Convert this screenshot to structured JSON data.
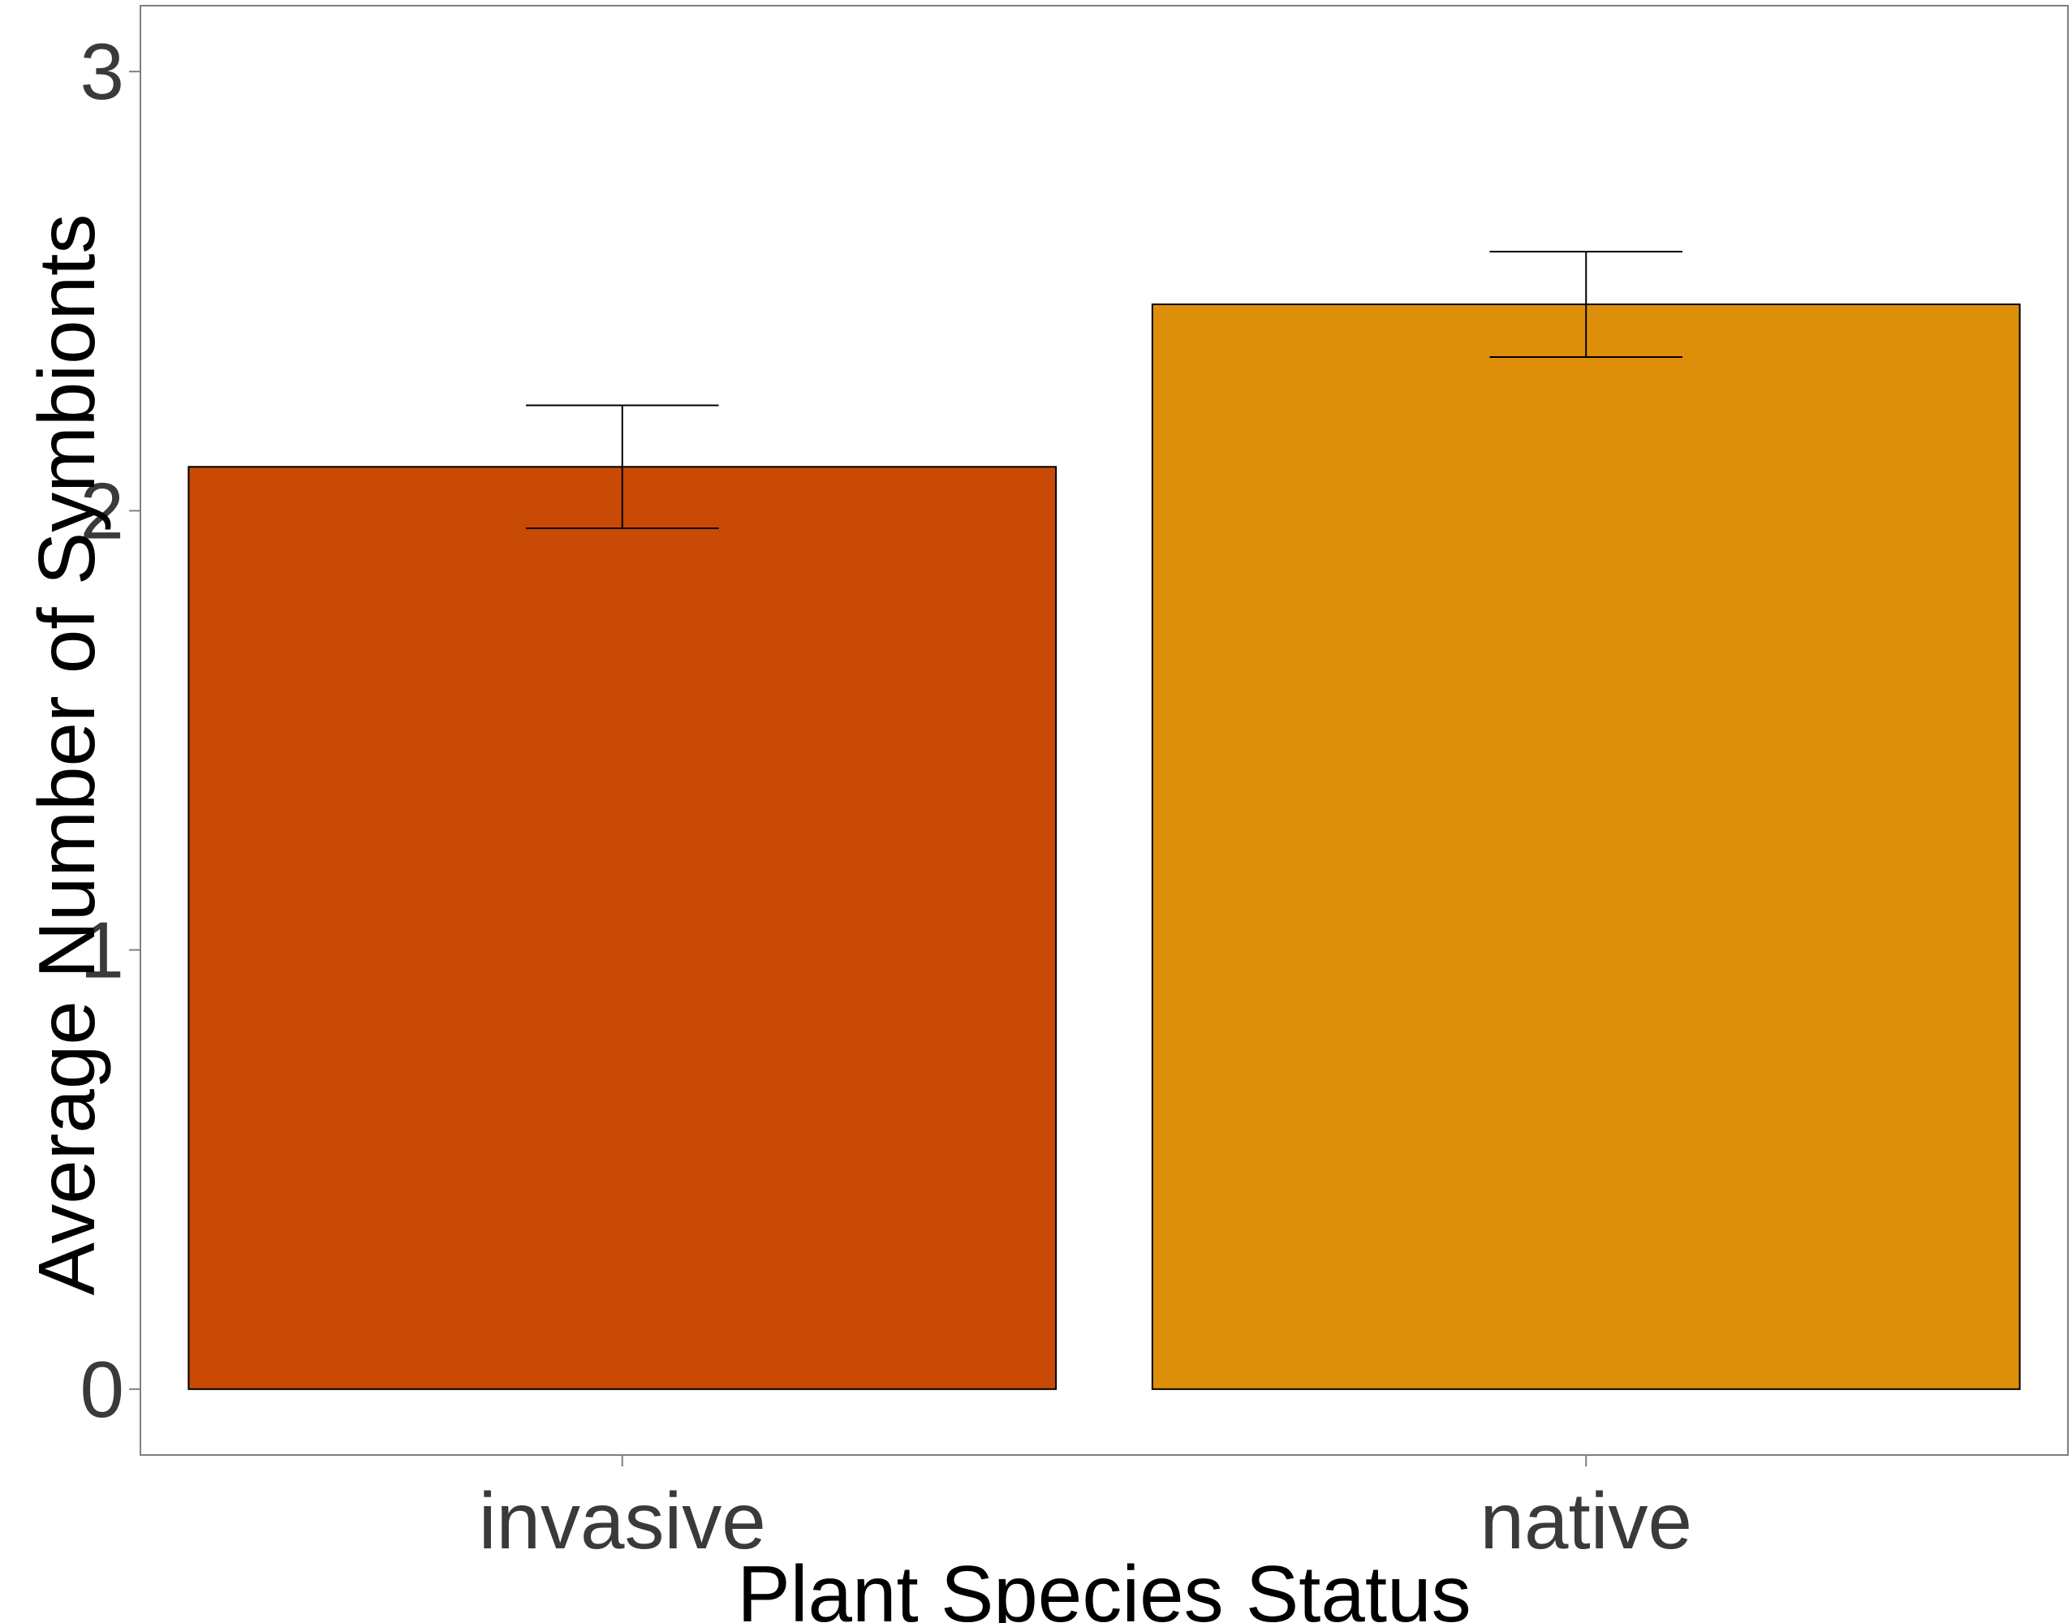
{
  "chart_data": {
    "type": "bar",
    "title": "",
    "xlabel": "Plant Species Status",
    "ylabel": "Average Number of Symbionts",
    "categories": [
      "invasive",
      "native"
    ],
    "values": [
      2.1,
      2.47
    ],
    "error_bars": [
      {
        "lower": 1.96,
        "upper": 2.24
      },
      {
        "lower": 2.35,
        "upper": 2.59
      }
    ],
    "ylim": [
      -0.15,
      3.15
    ],
    "yticks": [
      "0",
      "1",
      "2",
      "3"
    ],
    "grid": false,
    "legend": "none",
    "colors": [
      "#C94A05",
      "#DE8F0A"
    ],
    "bar_outline": "#000000"
  }
}
